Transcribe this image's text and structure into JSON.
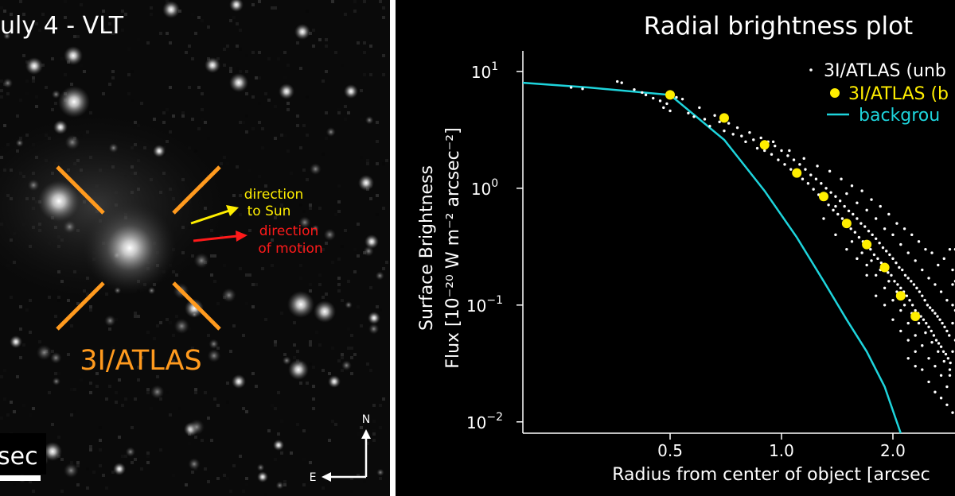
{
  "image_panel": {
    "title": "uly 4 - VLT",
    "object_label": "3I/ATLAS",
    "sun_arrow_line1": "direction",
    "sun_arrow_line2": "to Sun",
    "motion_arrow_line1": "direction",
    "motion_arrow_line2": "of motion",
    "scale_label": "sec",
    "compass_n": "N",
    "compass_e": "E",
    "colors": {
      "marker": "#ff9a1e",
      "sun_arrow": "#ffee00",
      "motion_arrow": "#ff1a1a"
    }
  },
  "chart_data": {
    "type": "scatter",
    "title": "Radial brightness plot",
    "ylabel_line1": "Surface Brightness",
    "ylabel_line2": "Flux [10⁻²⁰ W m⁻² arcsec⁻²]",
    "xlabel": "Radius from center of object [arcsec",
    "xscale": "log",
    "yscale": "log",
    "xlim": [
      0.2,
      3.0
    ],
    "ylim": [
      0.008,
      15
    ],
    "xticks": [
      0.5,
      1.0,
      2.0
    ],
    "xtick_labels": [
      "0.5",
      "1.0",
      "2.0"
    ],
    "yticks": [
      0.01,
      0.1,
      1,
      10
    ],
    "ytick_labels": [
      {
        "base": "10",
        "exp": "−2"
      },
      {
        "base": "10",
        "exp": "−1"
      },
      {
        "base": "10",
        "exp": "0"
      },
      {
        "base": "10",
        "exp": "1"
      }
    ],
    "legend_position": "top-right",
    "series": [
      {
        "name": "3I/ATLAS (unb",
        "kind": "scatter-small",
        "color": "#ffffff",
        "points": [
          [
            0.27,
            7.3
          ],
          [
            0.29,
            7.1
          ],
          [
            0.36,
            8.2
          ],
          [
            0.37,
            8.0
          ],
          [
            0.4,
            7.0
          ],
          [
            0.42,
            6.6
          ],
          [
            0.43,
            6.3
          ],
          [
            0.45,
            5.9
          ],
          [
            0.47,
            5.6
          ],
          [
            0.48,
            4.9
          ],
          [
            0.49,
            5.3
          ],
          [
            0.5,
            4.6
          ],
          [
            0.52,
            6.0
          ],
          [
            0.54,
            5.8
          ],
          [
            0.56,
            4.4
          ],
          [
            0.58,
            4.1
          ],
          [
            0.6,
            4.9
          ],
          [
            0.62,
            3.9
          ],
          [
            0.64,
            3.4
          ],
          [
            0.66,
            4.2
          ],
          [
            0.68,
            3.7
          ],
          [
            0.7,
            3.1
          ],
          [
            0.72,
            3.6
          ],
          [
            0.74,
            2.9
          ],
          [
            0.76,
            3.3
          ],
          [
            0.78,
            2.8
          ],
          [
            0.8,
            2.5
          ],
          [
            0.82,
            3.0
          ],
          [
            0.84,
            2.6
          ],
          [
            0.86,
            2.2
          ],
          [
            0.88,
            2.7
          ],
          [
            0.9,
            2.1
          ],
          [
            0.92,
            2.5
          ],
          [
            0.94,
            1.95
          ],
          [
            0.96,
            2.3
          ],
          [
            0.98,
            1.75
          ],
          [
            1.0,
            2.1
          ],
          [
            1.02,
            1.6
          ],
          [
            1.04,
            1.9
          ],
          [
            1.06,
            1.45
          ],
          [
            1.08,
            1.75
          ],
          [
            1.1,
            1.35
          ],
          [
            1.12,
            1.6
          ],
          [
            1.14,
            1.2
          ],
          [
            1.16,
            1.45
          ],
          [
            1.18,
            1.1
          ],
          [
            1.2,
            1.3
          ],
          [
            1.22,
            0.98
          ],
          [
            1.24,
            1.2
          ],
          [
            1.26,
            0.88
          ],
          [
            1.28,
            1.1
          ],
          [
            1.3,
            0.8
          ],
          [
            1.32,
            1.0
          ],
          [
            1.34,
            0.72
          ],
          [
            1.36,
            0.92
          ],
          [
            1.38,
            0.65
          ],
          [
            1.4,
            0.85
          ],
          [
            1.42,
            0.6
          ],
          [
            1.44,
            0.78
          ],
          [
            1.46,
            0.55
          ],
          [
            1.48,
            0.7
          ],
          [
            1.5,
            0.5
          ],
          [
            1.52,
            0.64
          ],
          [
            1.54,
            0.45
          ],
          [
            1.56,
            0.6
          ],
          [
            1.58,
            0.42
          ],
          [
            1.6,
            0.55
          ],
          [
            1.62,
            0.38
          ],
          [
            1.64,
            0.5
          ],
          [
            1.66,
            0.35
          ],
          [
            1.68,
            0.47
          ],
          [
            1.7,
            0.32
          ],
          [
            1.72,
            0.43
          ],
          [
            1.74,
            0.3
          ],
          [
            1.76,
            0.4
          ],
          [
            1.78,
            0.27
          ],
          [
            1.8,
            0.37
          ],
          [
            1.82,
            0.25
          ],
          [
            1.84,
            0.34
          ],
          [
            1.86,
            0.23
          ],
          [
            1.88,
            0.31
          ],
          [
            1.9,
            0.21
          ],
          [
            1.92,
            0.29
          ],
          [
            1.94,
            0.19
          ],
          [
            1.96,
            0.27
          ],
          [
            1.98,
            0.18
          ],
          [
            2.0,
            0.25
          ],
          [
            2.02,
            0.16
          ],
          [
            2.04,
            0.23
          ],
          [
            2.06,
            0.15
          ],
          [
            2.08,
            0.21
          ],
          [
            2.1,
            0.14
          ],
          [
            2.12,
            0.2
          ],
          [
            2.14,
            0.13
          ],
          [
            2.16,
            0.18
          ],
          [
            2.18,
            0.12
          ],
          [
            2.2,
            0.17
          ],
          [
            2.22,
            0.11
          ],
          [
            2.24,
            0.16
          ],
          [
            2.26,
            0.1
          ],
          [
            2.28,
            0.15
          ],
          [
            2.3,
            0.09
          ],
          [
            2.32,
            0.14
          ],
          [
            2.34,
            0.085
          ],
          [
            2.36,
            0.13
          ],
          [
            2.38,
            0.08
          ],
          [
            2.4,
            0.12
          ],
          [
            2.42,
            0.075
          ],
          [
            2.44,
            0.11
          ],
          [
            2.46,
            0.07
          ],
          [
            2.48,
            0.1
          ],
          [
            2.5,
            0.065
          ],
          [
            2.52,
            0.095
          ],
          [
            2.54,
            0.06
          ],
          [
            2.56,
            0.09
          ],
          [
            2.58,
            0.055
          ],
          [
            2.6,
            0.085
          ],
          [
            2.62,
            0.05
          ],
          [
            2.64,
            0.08
          ],
          [
            2.66,
            0.047
          ],
          [
            2.68,
            0.075
          ],
          [
            2.7,
            0.044
          ],
          [
            2.72,
            0.07
          ],
          [
            2.74,
            0.04
          ],
          [
            2.76,
            0.065
          ],
          [
            2.78,
            0.038
          ],
          [
            2.8,
            0.06
          ],
          [
            2.82,
            0.035
          ],
          [
            2.84,
            0.055
          ],
          [
            2.86,
            0.032
          ],
          [
            1.5,
            0.9
          ],
          [
            1.6,
            0.75
          ],
          [
            1.7,
            0.65
          ],
          [
            1.8,
            0.55
          ],
          [
            1.9,
            0.45
          ],
          [
            2.0,
            0.4
          ],
          [
            2.1,
            0.33
          ],
          [
            2.2,
            0.28
          ],
          [
            2.3,
            0.24
          ],
          [
            2.4,
            0.2
          ],
          [
            2.5,
            0.17
          ],
          [
            2.6,
            0.15
          ],
          [
            2.7,
            0.13
          ],
          [
            2.8,
            0.11
          ],
          [
            1.7,
            0.22
          ],
          [
            1.8,
            0.18
          ],
          [
            1.9,
            0.14
          ],
          [
            2.0,
            0.11
          ],
          [
            2.1,
            0.09
          ],
          [
            2.2,
            0.07
          ],
          [
            2.3,
            0.055
          ],
          [
            2.4,
            0.045
          ],
          [
            2.5,
            0.035
          ],
          [
            2.6,
            0.03
          ],
          [
            2.7,
            0.025
          ],
          [
            2.8,
            0.02
          ],
          [
            2.2,
            0.035
          ],
          [
            2.4,
            0.028
          ],
          [
            2.6,
            0.018
          ],
          [
            2.8,
            0.014
          ],
          [
            2.5,
            0.022
          ],
          [
            2.7,
            0.016
          ],
          [
            2.9,
            0.012
          ],
          [
            2.3,
            0.03
          ],
          [
            2.85,
            0.025
          ],
          [
            2.9,
            0.04
          ],
          [
            2.9,
            0.07
          ],
          [
            2.9,
            0.1
          ],
          [
            2.9,
            0.15
          ],
          [
            2.9,
            0.2
          ],
          [
            2.85,
            0.3
          ],
          [
            2.75,
            0.25
          ],
          [
            2.65,
            0.22
          ],
          [
            2.55,
            0.28
          ],
          [
            2.45,
            0.3
          ],
          [
            2.35,
            0.35
          ],
          [
            2.25,
            0.4
          ],
          [
            2.15,
            0.45
          ],
          [
            2.05,
            0.5
          ],
          [
            1.95,
            0.6
          ],
          [
            1.85,
            0.7
          ],
          [
            1.75,
            0.8
          ],
          [
            1.65,
            0.95
          ],
          [
            1.55,
            1.05
          ],
          [
            1.45,
            1.2
          ],
          [
            1.35,
            1.4
          ],
          [
            1.25,
            1.55
          ],
          [
            1.15,
            1.8
          ],
          [
            1.05,
            2.1
          ],
          [
            0.95,
            2.5
          ],
          [
            1.4,
            0.4
          ],
          [
            1.5,
            0.3
          ],
          [
            1.6,
            0.25
          ],
          [
            1.7,
            0.18
          ],
          [
            1.8,
            0.12
          ],
          [
            1.9,
            0.1
          ],
          [
            2.0,
            0.075
          ],
          [
            2.1,
            0.06
          ],
          [
            2.2,
            0.05
          ],
          [
            2.3,
            0.04
          ],
          [
            1.3,
            0.55
          ],
          [
            1.4,
            0.7
          ],
          [
            1.55,
            0.35
          ],
          [
            1.65,
            0.28
          ],
          [
            1.75,
            0.24
          ],
          [
            1.85,
            0.2
          ],
          [
            1.95,
            0.16
          ],
          [
            2.05,
            0.13
          ],
          [
            2.15,
            0.1
          ],
          [
            2.25,
            0.085
          ],
          [
            2.35,
            0.07
          ],
          [
            2.45,
            0.058
          ],
          [
            2.55,
            0.048
          ],
          [
            2.65,
            0.04
          ],
          [
            2.75,
            0.033
          ],
          [
            2.85,
            0.028
          ],
          [
            2.95,
            0.05
          ],
          [
            2.95,
            0.09
          ],
          [
            2.95,
            0.16
          ],
          [
            2.95,
            0.3
          ]
        ]
      },
      {
        "name": "3I/ATLAS (b",
        "kind": "scatter-large",
        "color": "#ffee00",
        "points": [
          [
            0.5,
            6.3
          ],
          [
            0.7,
            4.0
          ],
          [
            0.9,
            2.35
          ],
          [
            1.1,
            1.35
          ],
          [
            1.3,
            0.85
          ],
          [
            1.5,
            0.5
          ],
          [
            1.7,
            0.33
          ],
          [
            1.9,
            0.21
          ],
          [
            2.1,
            0.12
          ],
          [
            2.3,
            0.08
          ]
        ]
      },
      {
        "name": "backgrou",
        "kind": "line",
        "color": "#1ed4dc",
        "points": [
          [
            0.2,
            8.0
          ],
          [
            0.3,
            7.3
          ],
          [
            0.5,
            6.3
          ],
          [
            0.7,
            2.6
          ],
          [
            0.9,
            0.95
          ],
          [
            1.1,
            0.38
          ],
          [
            1.3,
            0.16
          ],
          [
            1.5,
            0.075
          ],
          [
            1.7,
            0.04
          ],
          [
            1.9,
            0.02
          ],
          [
            2.1,
            0.008
          ]
        ]
      }
    ]
  }
}
